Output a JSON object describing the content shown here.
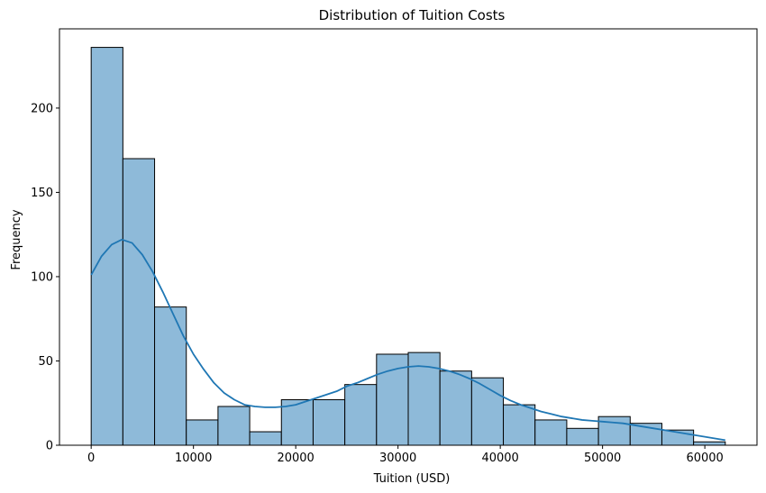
{
  "chart_data": {
    "type": "bar",
    "title": "Distribution of Tuition Costs",
    "xlabel": "Tuition (USD)",
    "ylabel": "Frequency",
    "xlim": [
      -3100,
      65100
    ],
    "ylim": [
      0,
      247
    ],
    "xticks": [
      0,
      10000,
      20000,
      30000,
      40000,
      50000,
      60000
    ],
    "yticks": [
      0,
      50,
      100,
      150,
      200
    ],
    "bins": [
      {
        "x0": 0,
        "x1": 3100,
        "count": 236
      },
      {
        "x0": 3100,
        "x1": 6200,
        "count": 170
      },
      {
        "x0": 6200,
        "x1": 9300,
        "count": 82
      },
      {
        "x0": 9300,
        "x1": 12400,
        "count": 15
      },
      {
        "x0": 12400,
        "x1": 15500,
        "count": 23
      },
      {
        "x0": 15500,
        "x1": 18600,
        "count": 8
      },
      {
        "x0": 18600,
        "x1": 21700,
        "count": 27
      },
      {
        "x0": 21700,
        "x1": 24800,
        "count": 27
      },
      {
        "x0": 24800,
        "x1": 27900,
        "count": 36
      },
      {
        "x0": 27900,
        "x1": 31000,
        "count": 54
      },
      {
        "x0": 31000,
        "x1": 34100,
        "count": 55
      },
      {
        "x0": 34100,
        "x1": 37200,
        "count": 44
      },
      {
        "x0": 37200,
        "x1": 40300,
        "count": 40
      },
      {
        "x0": 40300,
        "x1": 43400,
        "count": 24
      },
      {
        "x0": 43400,
        "x1": 46500,
        "count": 15
      },
      {
        "x0": 46500,
        "x1": 49600,
        "count": 10
      },
      {
        "x0": 49600,
        "x1": 52700,
        "count": 17
      },
      {
        "x0": 52700,
        "x1": 55800,
        "count": 13
      },
      {
        "x0": 55800,
        "x1": 58900,
        "count": 9
      },
      {
        "x0": 58900,
        "x1": 62000,
        "count": 2
      }
    ],
    "kde": {
      "x": [
        0,
        1000,
        2000,
        3000,
        4000,
        5000,
        6000,
        7000,
        8000,
        9000,
        10000,
        11000,
        12000,
        13000,
        14000,
        15000,
        16000,
        17000,
        18000,
        19000,
        20000,
        21000,
        22000,
        23000,
        24000,
        25000,
        26000,
        27000,
        28000,
        29000,
        30000,
        31000,
        32000,
        33000,
        34000,
        35000,
        36000,
        37000,
        38000,
        39000,
        40000,
        41000,
        42000,
        43000,
        44000,
        45000,
        46000,
        47000,
        48000,
        49000,
        50000,
        51000,
        52000,
        53000,
        54000,
        55000,
        56000,
        57000,
        58000,
        59000,
        60000,
        61000,
        62000
      ],
      "y": [
        101,
        112,
        119,
        122,
        120,
        113,
        103,
        91,
        78,
        65,
        54,
        45,
        37,
        31,
        27,
        24,
        23,
        22.5,
        22.5,
        23,
        24,
        26,
        28,
        30,
        32,
        35,
        37,
        39.5,
        42,
        44,
        45.5,
        46.5,
        47,
        46.5,
        45.5,
        44,
        42,
        39.5,
        36.5,
        33,
        29.5,
        26.5,
        24,
        22,
        20,
        18.5,
        17,
        16,
        15,
        14.5,
        14,
        13.5,
        13,
        12,
        11,
        10,
        9,
        8,
        7,
        6,
        5,
        4,
        3
      ]
    },
    "colors": {
      "bar_fill": "#8ebad9",
      "bar_edge": "#000000",
      "kde_line": "#1f77b4"
    },
    "grid": false,
    "legend": "none"
  }
}
